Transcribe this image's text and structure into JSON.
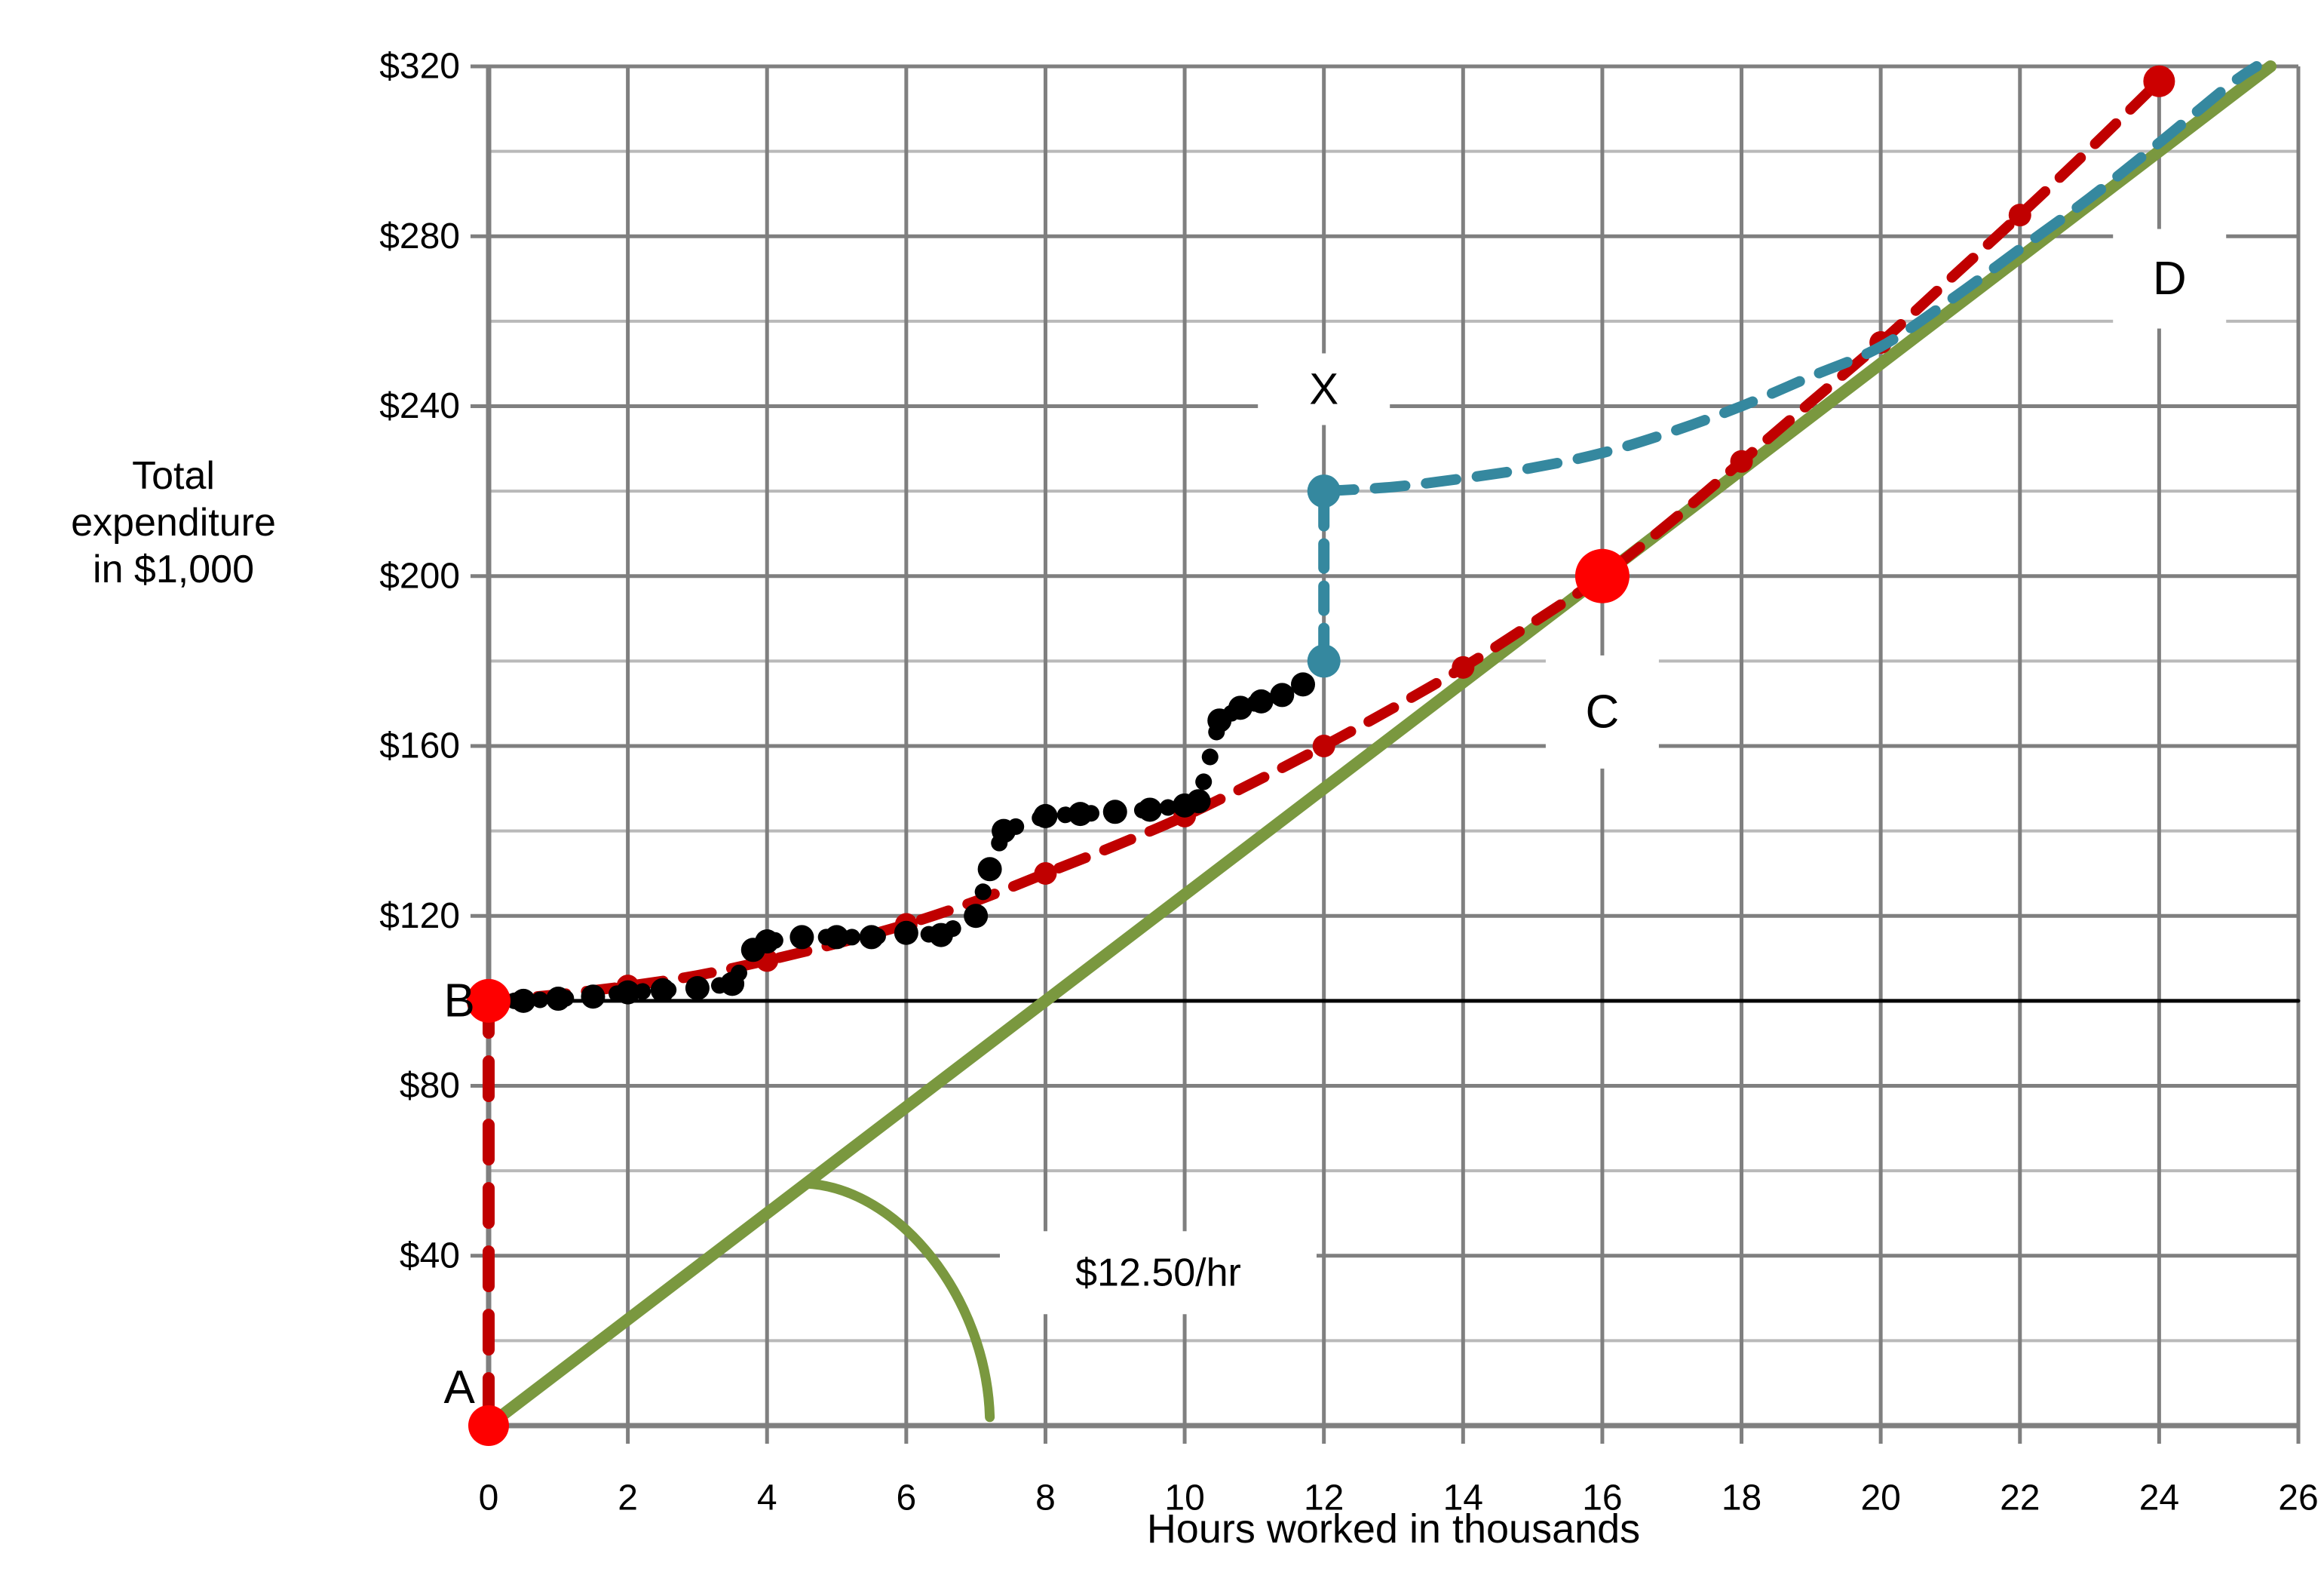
{
  "figure": {
    "xlabel": "Hours worked in thousands",
    "ylabel_lines": [
      "Total",
      "expenditure",
      "in $1,000"
    ]
  },
  "chart_data": {
    "type": "line",
    "title": "",
    "xlabel": "Hours worked in thousands",
    "ylabel": "Total expenditure in $1,000",
    "xlim": [
      0,
      26
    ],
    "ylim": [
      0,
      320
    ],
    "grid": "on",
    "legend": "none",
    "x_ticks": [
      0,
      2,
      4,
      6,
      8,
      10,
      12,
      14,
      16,
      18,
      20,
      22,
      24,
      26
    ],
    "y_tick_labels": [
      {
        "value": 320,
        "label": "$320"
      },
      {
        "value": 280,
        "label": "$280"
      },
      {
        "value": 240,
        "label": "$240"
      },
      {
        "value": 200,
        "label": "$200"
      },
      {
        "value": 160,
        "label": "$160"
      },
      {
        "value": 120,
        "label": "$120"
      },
      {
        "value": 80,
        "label": "$80"
      },
      {
        "value": 40,
        "label": "$40"
      }
    ],
    "y_grid_step": 20,
    "colors": {
      "grid_major": "#7f7f7f",
      "grid_minor": "#b9b9b9",
      "axis": "#7f7f7f",
      "wage_green": "#7a983f",
      "avg_red": "#c00000",
      "dot_red": "#fe0000",
      "projection_teal": "#35889f",
      "actual_black": "#000000"
    },
    "series": [
      {
        "name": "base-level-line",
        "style": "solid",
        "smooth": false,
        "color": "#000000",
        "width": 5,
        "points": [
          [
            0,
            100
          ],
          [
            26,
            100
          ]
        ]
      },
      {
        "name": "hourly-wage-line",
        "style": "solid",
        "smooth": false,
        "color": "#7a983f",
        "width": 16,
        "annotation": "$12.50/hr",
        "slope_per_hour": 12.5,
        "points": [
          [
            0,
            0
          ],
          [
            25.6,
            320
          ]
        ]
      },
      {
        "name": "fixed-base-vertical",
        "style": "dashed",
        "smooth": false,
        "color": "#c00000",
        "width": 16,
        "dash": [
          46,
          38
        ],
        "points": [
          [
            0,
            3
          ],
          [
            0,
            95
          ]
        ]
      },
      {
        "name": "smoothed-average-expenditure",
        "style": "dashed",
        "smooth": true,
        "color": "#c00000",
        "width": 14,
        "dash": [
          38,
          27
        ],
        "marker_radius": 15,
        "marker_at_x": [
          2,
          4,
          6,
          8,
          10,
          12,
          14,
          18,
          20,
          22
        ],
        "points": [
          [
            0,
            100
          ],
          [
            1,
            101.5
          ],
          [
            2,
            103.5
          ],
          [
            3,
            106
          ],
          [
            4,
            109.5
          ],
          [
            5,
            113.5
          ],
          [
            6,
            118
          ],
          [
            7,
            123.5
          ],
          [
            8,
            130
          ],
          [
            9,
            136.5
          ],
          [
            10,
            143.5
          ],
          [
            11,
            151.5
          ],
          [
            12,
            160
          ],
          [
            13,
            169
          ],
          [
            14,
            178.5
          ],
          [
            15,
            189
          ],
          [
            16,
            200
          ],
          [
            17,
            213
          ],
          [
            18,
            227
          ],
          [
            19,
            241
          ],
          [
            20,
            255
          ],
          [
            21,
            270
          ],
          [
            22,
            285
          ],
          [
            23,
            300.5
          ],
          [
            24,
            316.5
          ]
        ]
      },
      {
        "name": "actual-expenditure-steps",
        "style": "dotted",
        "smooth": false,
        "color": "#000000",
        "width": 22,
        "dash": [
          0.1,
          34
        ],
        "marker_radius": 16,
        "points": [
          [
            0,
            100
          ],
          [
            0.5,
            100
          ],
          [
            1,
            100.5
          ],
          [
            1.5,
            101
          ],
          [
            2,
            102
          ],
          [
            2.5,
            102.5
          ],
          [
            3,
            103
          ],
          [
            3.5,
            104
          ],
          [
            3.8,
            112
          ],
          [
            4,
            114
          ],
          [
            4.5,
            115
          ],
          [
            5,
            115
          ],
          [
            5.5,
            115
          ],
          [
            6,
            116
          ],
          [
            6.5,
            115.5
          ],
          [
            7,
            120
          ],
          [
            7.2,
            131
          ],
          [
            7.4,
            140
          ],
          [
            8,
            143.5
          ],
          [
            8.5,
            144
          ],
          [
            9,
            144.5
          ],
          [
            9.5,
            145
          ],
          [
            10,
            146
          ],
          [
            10.2,
            147
          ],
          [
            10.5,
            166
          ],
          [
            10.8,
            169
          ],
          [
            11.1,
            170.5
          ],
          [
            11.4,
            172
          ],
          [
            11.7,
            174.5
          ],
          [
            12,
            180
          ]
        ]
      },
      {
        "name": "adjustment-gap-segment",
        "style": "dashed",
        "smooth": false,
        "color": "#35889f",
        "width": 15,
        "dash": [
          32,
          24
        ],
        "points": [
          [
            12,
            182
          ],
          [
            12,
            218
          ]
        ]
      },
      {
        "name": "projected-expenditure",
        "style": "dashed",
        "smooth": true,
        "color": "#35889f",
        "width": 14,
        "dash": [
          40,
          28
        ],
        "points": [
          [
            12,
            220
          ],
          [
            13,
            221
          ],
          [
            14,
            223
          ],
          [
            15,
            225.5
          ],
          [
            16,
            229
          ],
          [
            17,
            234
          ],
          [
            18,
            240
          ],
          [
            19,
            247
          ],
          [
            20,
            254
          ],
          [
            21,
            265
          ],
          [
            22,
            277
          ],
          [
            23,
            289
          ],
          [
            24,
            302
          ],
          [
            25,
            315.5
          ],
          [
            25.4,
            320
          ]
        ]
      }
    ],
    "markers": [
      {
        "name": "point-A",
        "x": 0,
        "y": 0,
        "r": 27,
        "color": "#fe0000"
      },
      {
        "name": "point-B",
        "x": 0,
        "y": 100,
        "r": 29,
        "color": "#fe0000"
      },
      {
        "name": "point-C",
        "x": 16,
        "y": 200,
        "r": 36,
        "color": "#fe0000"
      },
      {
        "name": "average-end-dot",
        "x": 24,
        "y": 316.5,
        "r": 21,
        "color": "#cc0000"
      },
      {
        "name": "gap-top-dot",
        "x": 12,
        "y": 220,
        "r": 22,
        "color": "#35889f"
      },
      {
        "name": "gap-bottom-dot",
        "x": 12,
        "y": 180,
        "r": 22,
        "color": "#35889f"
      }
    ],
    "point_labels": [
      {
        "name": "label-A",
        "text": "A",
        "x": -0.42,
        "y": 9,
        "font": 62,
        "boxed": false
      },
      {
        "name": "label-B",
        "text": "B",
        "x": -0.42,
        "y": 100,
        "font": 62,
        "boxed": false
      },
      {
        "name": "label-C",
        "text": "C",
        "x": 16,
        "y": 168,
        "font": 62,
        "boxed": true,
        "bw": 150,
        "bh": 150
      },
      {
        "name": "label-D",
        "text": "D",
        "x": 24.15,
        "y": 270,
        "font": 62,
        "boxed": true,
        "bw": 150,
        "bh": 132
      },
      {
        "name": "label-X",
        "text": "X",
        "x": 12,
        "y": 244,
        "font": 58,
        "boxed": true,
        "bw": 175,
        "bh": 95
      },
      {
        "name": "label-rate",
        "text": "$12.50/hr",
        "x": 9.62,
        "y": 36,
        "font": 52,
        "boxed": true,
        "bw": 420,
        "bh": 110
      }
    ],
    "slope_arc": {
      "from": [
        4.55,
        57
      ],
      "c1": [
        5.9,
        56
      ],
      "c2": [
        7.15,
        30
      ],
      "to": [
        7.2,
        2
      ],
      "color": "#7a983f",
      "width": 13
    }
  }
}
